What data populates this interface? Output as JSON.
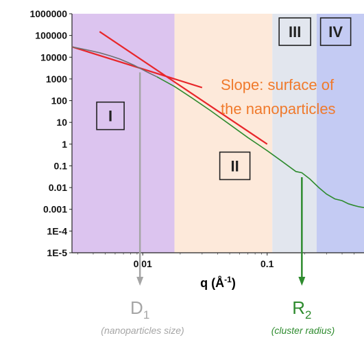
{
  "chart_data": {
    "type": "line",
    "x_scale": "log",
    "y_scale": "log",
    "xlim": [
      0.0027,
      0.6
    ],
    "ylim": [
      1e-05,
      1000000
    ],
    "xlabel_main": "q (Å",
    "xlabel_sup": "-1",
    "xlabel_end": ")",
    "x_ticks": [
      {
        "value": 0.01,
        "label": "0.01"
      },
      {
        "value": 0.1,
        "label": "0.1"
      }
    ],
    "y_ticks": [
      {
        "value": 1000000,
        "label": "1000000"
      },
      {
        "value": 100000,
        "label": "100000"
      },
      {
        "value": 10000,
        "label": "10000"
      },
      {
        "value": 1000,
        "label": "1000"
      },
      {
        "value": 100,
        "label": "100"
      },
      {
        "value": 10,
        "label": "10"
      },
      {
        "value": 1,
        "label": "1"
      },
      {
        "value": 0.1,
        "label": "0.1"
      },
      {
        "value": 0.01,
        "label": "0.01"
      },
      {
        "value": 0.001,
        "label": "0.001"
      },
      {
        "value": 0.0001,
        "label": "1E-4"
      },
      {
        "value": 1e-05,
        "label": "1E-5"
      }
    ],
    "regions": [
      {
        "label": "I",
        "x0": 0.0027,
        "x1": 0.018,
        "color": "#dcc4ef"
      },
      {
        "label": "II",
        "x0": 0.018,
        "x1": 0.11,
        "color": "#fde9da"
      },
      {
        "label": "III",
        "x0": 0.11,
        "x1": 0.25,
        "color": "#e2e6ee"
      },
      {
        "label": "IV",
        "x0": 0.25,
        "x1": 0.6,
        "color": "#c4cbf3"
      }
    ],
    "series": [
      {
        "color": "#6f6f6f",
        "points": [
          [
            0.0027,
            30000
          ],
          [
            0.0035,
            22000
          ],
          [
            0.0045,
            16000
          ],
          [
            0.0055,
            11500
          ],
          [
            0.0065,
            8300
          ],
          [
            0.0075,
            5900
          ],
          [
            0.0085,
            4300
          ],
          [
            0.0095,
            3100
          ],
          [
            0.011,
            2000
          ],
          [
            0.013,
            1250
          ]
        ]
      },
      {
        "color": "#2e8b2e",
        "points": [
          [
            0.013,
            1250
          ],
          [
            0.018,
            450
          ],
          [
            0.025,
            130
          ],
          [
            0.035,
            35
          ],
          [
            0.05,
            8
          ],
          [
            0.07,
            2
          ],
          [
            0.1,
            0.5
          ],
          [
            0.13,
            0.17
          ],
          [
            0.17,
            0.055
          ],
          [
            0.19,
            0.048
          ],
          [
            0.22,
            0.025
          ],
          [
            0.26,
            0.01
          ],
          [
            0.3,
            0.005
          ],
          [
            0.35,
            0.003
          ],
          [
            0.4,
            0.0025
          ],
          [
            0.45,
            0.0018
          ],
          [
            0.5,
            0.0015
          ],
          [
            0.55,
            0.0013
          ],
          [
            0.6,
            0.0012
          ]
        ]
      }
    ],
    "fit_lines": [
      {
        "name": "slope-line-low-q",
        "color": "#e8262a",
        "from": [
          0.0027,
          30000
        ],
        "to": [
          0.03,
          400
        ]
      },
      {
        "name": "slope-line-porod",
        "color": "#e8262a",
        "from": [
          0.0045,
          150000
        ],
        "to": [
          0.1,
          1
        ]
      }
    ],
    "annotations": {
      "slope_line1": "Slope: surface of",
      "slope_line2": "the nanoparticles",
      "slope_color": "#f07a2c",
      "d1_letter": "D",
      "d1_sub": "1",
      "d1_caption": "(nanoparticles size)",
      "d1_color": "#a5a5a5",
      "d1_q": 0.0095,
      "r2_letter": "R",
      "r2_sub": "2",
      "r2_caption": "(cluster radius)",
      "r2_color": "#2e8b2e",
      "r2_q": 0.19
    },
    "grid": false
  }
}
